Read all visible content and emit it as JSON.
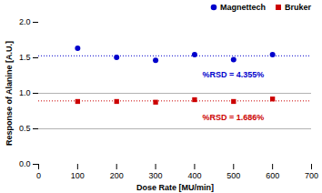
{
  "chart_data": {
    "type": "scatter",
    "xlabel": "Dose Rate [MU/min]",
    "ylabel": "Response of Alanine [A.U.]",
    "x": [
      100,
      200,
      300,
      400,
      500,
      600
    ],
    "series": [
      {
        "name": "Magnettech",
        "color": "#0000cc",
        "marker": "circle",
        "values": [
          1.635,
          1.505,
          1.465,
          1.545,
          1.475,
          1.545
        ],
        "mean": 1.528
      },
      {
        "name": "Bruker",
        "color": "#cc0000",
        "marker": "square",
        "values": [
          0.885,
          0.885,
          0.875,
          0.91,
          0.885,
          0.92
        ],
        "mean": 0.893
      }
    ],
    "reference_lines": [
      {
        "value": 1.0,
        "color": "#888888"
      },
      {
        "value": 0.5,
        "color": "#888888"
      }
    ],
    "annotations": [
      {
        "text": "%RSD = 4.355%",
        "x": 420,
        "y": 1.22,
        "color": "#0000cc"
      },
      {
        "text": "%RSD = 1.686%",
        "x": 420,
        "y": 0.62,
        "color": "#cc0000"
      }
    ],
    "xlim": [
      0,
      700
    ],
    "ylim": [
      0,
      2
    ],
    "xticks": [
      0,
      100,
      200,
      300,
      400,
      500,
      600,
      700
    ],
    "yticks": [
      {
        "value": 0,
        "label": "0.0"
      },
      0.5,
      {
        "value": 1.0,
        "label": "1.0"
      },
      1.5,
      {
        "value": 2.0,
        "label": "2.0"
      }
    ],
    "legend": "upper right",
    "grid": false
  }
}
